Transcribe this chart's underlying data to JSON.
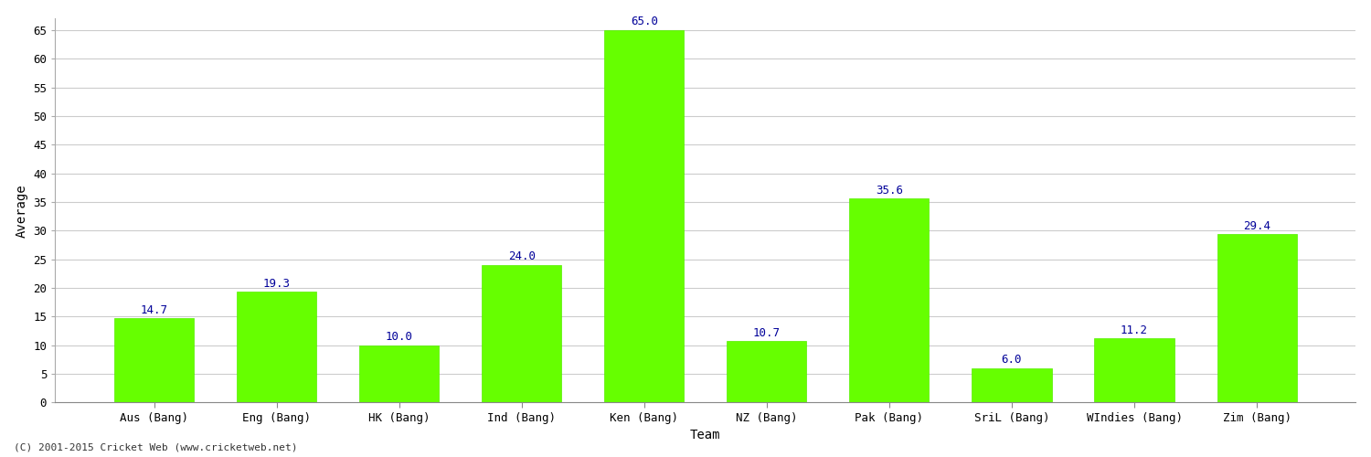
{
  "categories": [
    "Aus (Bang)",
    "Eng (Bang)",
    "HK (Bang)",
    "Ind (Bang)",
    "Ken (Bang)",
    "NZ (Bang)",
    "Pak (Bang)",
    "SriL (Bang)",
    "WIndies (Bang)",
    "Zim (Bang)"
  ],
  "values": [
    14.7,
    19.3,
    10.0,
    24.0,
    65.0,
    10.7,
    35.6,
    6.0,
    11.2,
    29.4
  ],
  "bar_color": "#66ff00",
  "bar_edge_color": "#55ee00",
  "label_color": "#000099",
  "ylabel": "Average",
  "xlabel": "Team",
  "ylim": [
    0,
    67
  ],
  "yticks": [
    0,
    5,
    10,
    15,
    20,
    25,
    30,
    35,
    40,
    45,
    50,
    55,
    60,
    65
  ],
  "background_color": "#ffffff",
  "plot_bg_color": "#ffffff",
  "grid_color": "#cccccc",
  "footer_text": "(C) 2001-2015 Cricket Web (www.cricketweb.net)",
  "label_fontsize": 9,
  "axis_label_fontsize": 10,
  "tick_fontsize": 9,
  "bar_width": 0.65
}
